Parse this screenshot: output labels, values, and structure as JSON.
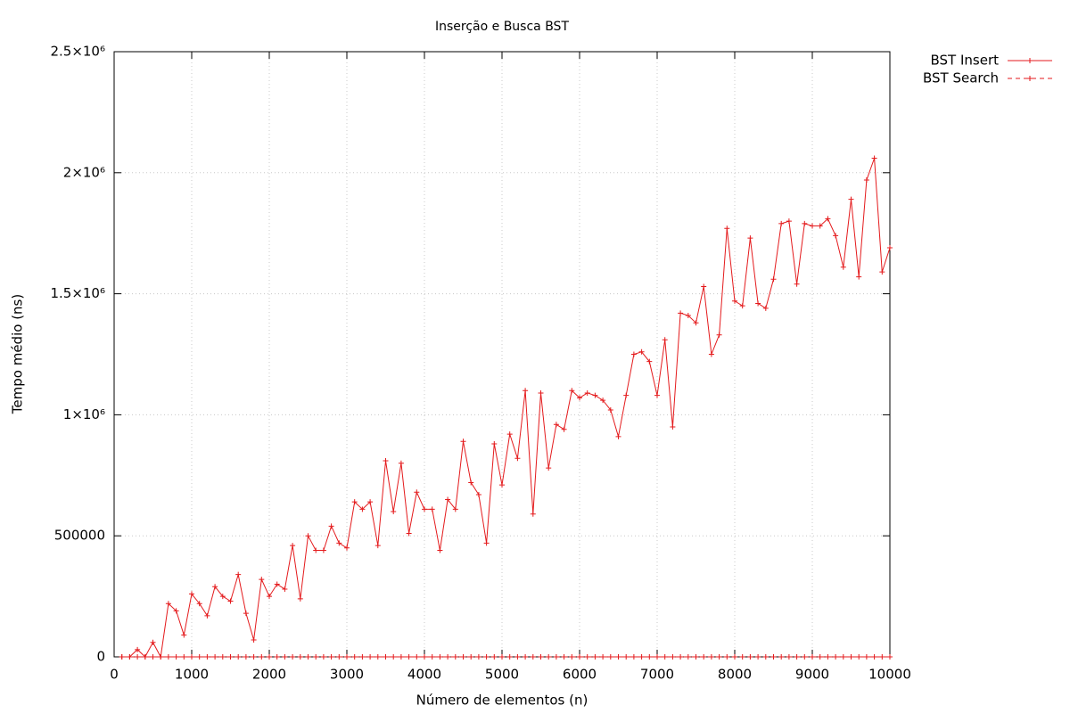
{
  "chart_data": {
    "type": "line",
    "title": "Inserção e Busca BST",
    "x_label": "Número de elementos (n)",
    "y_label": "Tempo médio (ns)",
    "x": [
      100,
      200,
      300,
      400,
      500,
      600,
      700,
      800,
      900,
      1000,
      1100,
      1200,
      1300,
      1400,
      1500,
      1600,
      1700,
      1800,
      1900,
      2000,
      2100,
      2200,
      2300,
      2400,
      2500,
      2600,
      2700,
      2800,
      2900,
      3000,
      3100,
      3200,
      3300,
      3400,
      3500,
      3600,
      3700,
      3800,
      3900,
      4000,
      4100,
      4200,
      4300,
      4400,
      4500,
      4600,
      4700,
      4800,
      4900,
      5000,
      5100,
      5200,
      5300,
      5400,
      5500,
      5600,
      5700,
      5800,
      5900,
      6000,
      6100,
      6200,
      6300,
      6400,
      6500,
      6600,
      6700,
      6800,
      6900,
      7000,
      7100,
      7200,
      7300,
      7400,
      7500,
      7600,
      7700,
      7800,
      7900,
      8000,
      8100,
      8200,
      8300,
      8400,
      8500,
      8600,
      8700,
      8800,
      8900,
      9000,
      9100,
      9200,
      9300,
      9400,
      9500,
      9600,
      9700,
      9800,
      9900,
      10000
    ],
    "series": [
      {
        "name": "BST Insert",
        "color": "#e41a1c",
        "dashed": false,
        "values": [
          0,
          0,
          30000,
          0,
          60000,
          0,
          220000,
          190000,
          90000,
          260000,
          220000,
          170000,
          290000,
          250000,
          230000,
          340000,
          180000,
          70000,
          320000,
          250000,
          300000,
          280000,
          460000,
          240000,
          500000,
          440000,
          440000,
          540000,
          470000,
          450000,
          640000,
          610000,
          640000,
          460000,
          810000,
          600000,
          800000,
          510000,
          680000,
          610000,
          610000,
          440000,
          650000,
          610000,
          890000,
          720000,
          670000,
          470000,
          880000,
          710000,
          920000,
          820000,
          1100000,
          590000,
          1090000,
          780000,
          960000,
          940000,
          1100000,
          1070000,
          1090000,
          1080000,
          1060000,
          1020000,
          910000,
          1080000,
          1250000,
          1260000,
          1220000,
          1080000,
          1310000,
          950000,
          1420000,
          1410000,
          1380000,
          1530000,
          1250000,
          1330000,
          1770000,
          1470000,
          1450000,
          1730000,
          1460000,
          1440000,
          1560000,
          1790000,
          1800000,
          1540000,
          1790000,
          1780000,
          1780000,
          1810000,
          1740000,
          1610000,
          1890000,
          1570000,
          1970000,
          2060000,
          1590000,
          1690000
        ]
      },
      {
        "name": "BST Search",
        "color": "#e41a1c",
        "dashed": true,
        "values": [
          0,
          0,
          0,
          0,
          0,
          0,
          0,
          0,
          0,
          0,
          0,
          0,
          0,
          0,
          0,
          0,
          0,
          0,
          0,
          0,
          0,
          0,
          0,
          0,
          0,
          0,
          0,
          0,
          0,
          0,
          0,
          0,
          0,
          0,
          0,
          0,
          0,
          0,
          0,
          0,
          0,
          0,
          0,
          0,
          0,
          0,
          0,
          0,
          0,
          0,
          0,
          0,
          0,
          0,
          0,
          0,
          0,
          0,
          0,
          0,
          0,
          0,
          0,
          0,
          0,
          0,
          0,
          0,
          0,
          0,
          0,
          0,
          0,
          0,
          0,
          0,
          0,
          0,
          0,
          0,
          0,
          0,
          0,
          0,
          0,
          0,
          0,
          0,
          0,
          0,
          0,
          0,
          0,
          0,
          0,
          0,
          0,
          0,
          0,
          0
        ]
      }
    ],
    "xlim": [
      0,
      10000
    ],
    "xticks": [
      0,
      1000,
      2000,
      3000,
      4000,
      5000,
      6000,
      7000,
      8000,
      9000,
      10000
    ],
    "ylim": [
      0,
      2500000
    ],
    "yticks": [
      0,
      500000,
      {
        "value": 1000000,
        "label": "1×10⁶"
      },
      {
        "value": 1500000,
        "label": "1.5×10⁶"
      },
      {
        "value": 2000000,
        "label": "2×10⁶"
      },
      {
        "value": 2500000,
        "label": "2.5×10⁶"
      }
    ],
    "grid": true,
    "legend": "outside-top-right"
  }
}
